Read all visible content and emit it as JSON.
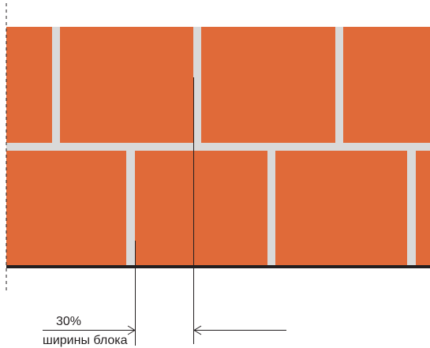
{
  "annotation": {
    "offset_percent": "30%",
    "offset_caption": "ширины блока"
  },
  "colors": {
    "brick": "#e06a39",
    "mortar": "#d9d9d9",
    "base_line": "#231f20",
    "dimension_line": "#231f20",
    "background": "#ffffff"
  }
}
